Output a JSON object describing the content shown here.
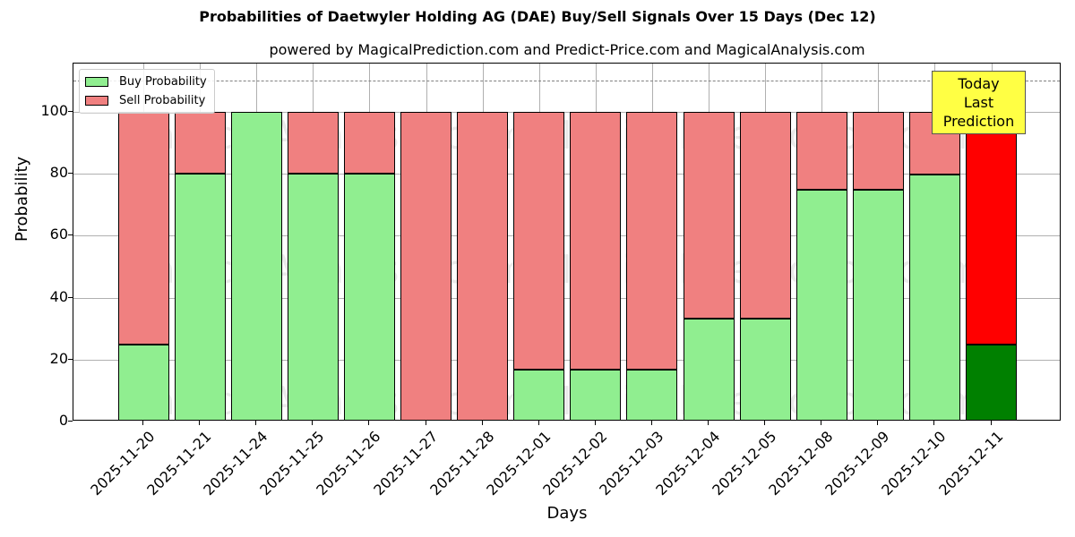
{
  "title": "Probabilities of Daetwyler Holding AG (DAE) Buy/Sell Signals Over 15 Days (Dec 12)",
  "subtitle": "powered by MagicalPrediction.com and Predict-Price.com and MagicalAnalysis.com",
  "annotation": {
    "line1": "Today",
    "line2": "Last Prediction"
  },
  "legend": {
    "buy": "Buy Probability",
    "sell": "Sell Probability"
  },
  "watermarks": [
    "MagicalAnalysis.com",
    "MagicalPrediction.com"
  ],
  "colors": {
    "buy": "#90ee90",
    "sell": "#f08080",
    "buy_today": "#008000",
    "sell_today": "#ff0000",
    "annotation_bg": "#ffff44"
  },
  "chart_data": {
    "type": "bar",
    "stacked": true,
    "title": "Probabilities of Daetwyler Holding AG (DAE) Buy/Sell Signals Over 15 Days (Dec 12)",
    "subtitle": "powered by MagicalPrediction.com and Predict-Price.com and MagicalAnalysis.com",
    "xlabel": "Days",
    "ylabel": "Probability",
    "ylim": [
      0,
      115
    ],
    "yticks": [
      0,
      20,
      40,
      60,
      80,
      100
    ],
    "grid": true,
    "legend_position": "upper left",
    "reference_line": {
      "y": 110,
      "style": "dashed"
    },
    "categories": [
      "2025-11-20",
      "2025-11-21",
      "2025-11-24",
      "2025-11-25",
      "2025-11-26",
      "2025-11-27",
      "2025-11-28",
      "2025-12-01",
      "2025-12-02",
      "2025-12-03",
      "2025-12-04",
      "2025-12-05",
      "2025-12-08",
      "2025-12-09",
      "2025-12-10",
      "2025-12-11"
    ],
    "series": [
      {
        "name": "Buy Probability",
        "values": [
          25,
          80,
          100,
          80,
          80,
          0,
          0,
          16.7,
          16.7,
          16.7,
          33.3,
          33.3,
          75,
          75,
          79.8,
          25
        ]
      },
      {
        "name": "Sell Probability",
        "values": [
          75,
          20,
          0,
          20,
          20,
          100,
          100,
          83.3,
          83.3,
          83.3,
          66.7,
          66.7,
          25,
          25,
          20.2,
          75
        ]
      }
    ],
    "annotations": [
      {
        "text": "Today\nLast Prediction",
        "x": "2025-12-11"
      }
    ]
  }
}
